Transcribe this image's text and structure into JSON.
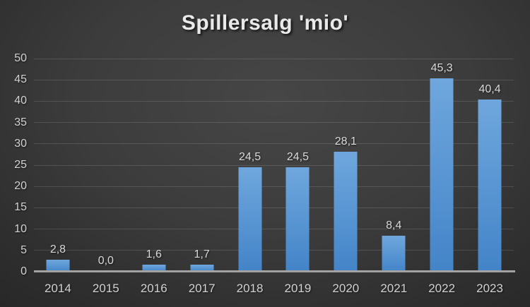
{
  "chart_data": {
    "type": "bar",
    "title": "Spillersalg 'mio'",
    "categories": [
      "2014",
      "2015",
      "2016",
      "2017",
      "2018",
      "2019",
      "2020",
      "2021",
      "2022",
      "2023"
    ],
    "values": [
      2.8,
      0.0,
      1.6,
      1.7,
      24.5,
      24.5,
      28.1,
      8.4,
      45.3,
      40.4
    ],
    "value_labels": [
      "2,8",
      "0,0",
      "1,6",
      "1,7",
      "24,5",
      "24,5",
      "28,1",
      "8,4",
      "45,3",
      "40,4"
    ],
    "xlabel": "",
    "ylabel": "",
    "ylim": [
      0,
      50
    ],
    "yticks": [
      0,
      5,
      10,
      15,
      20,
      25,
      30,
      35,
      40,
      45,
      50
    ],
    "grid": true,
    "legend_position": "none",
    "colors": {
      "bar_top": "#6FA7DD",
      "bar_bottom": "#4384C8",
      "background_center": "#464646",
      "background_edge": "#262626",
      "gridline": "rgba(255,255,255,0.13)",
      "axis_line": "#a2a2a2",
      "title_text": "#e9e9e9",
      "label_text": "#d9d9d9"
    }
  }
}
